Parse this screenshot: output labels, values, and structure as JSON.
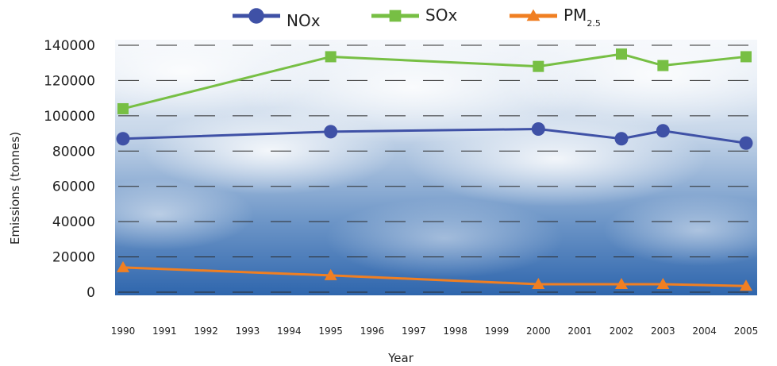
{
  "chart_data": {
    "type": "line",
    "title": "",
    "xlabel": "Year",
    "ylabel": "Emissions (tonnes)",
    "x": [
      "1990",
      "1991",
      "1992",
      "1993",
      "1994",
      "1995",
      "1996",
      "1997",
      "1998",
      "1999",
      "2000",
      "2001",
      "2002",
      "2003",
      "2004",
      "2005"
    ],
    "ylim": [
      0,
      140000
    ],
    "yticks": [
      "0",
      "20000",
      "40000",
      "60000",
      "80000",
      "100000",
      "120000",
      "140000"
    ],
    "grid": "dashed horizontal",
    "legend_position": "top",
    "background": "sky with clouds",
    "series": [
      {
        "name": "NOx",
        "color": "#3f51a6",
        "marker": "circle",
        "points": [
          {
            "x": "1990",
            "y": 87000
          },
          {
            "x": "1995",
            "y": 91000
          },
          {
            "x": "2000",
            "y": 92500
          },
          {
            "x": "2002",
            "y": 87000
          },
          {
            "x": "2003",
            "y": 91500
          },
          {
            "x": "2005",
            "y": 84500
          }
        ]
      },
      {
        "name": "SOx",
        "color": "#77bf44",
        "marker": "square",
        "points": [
          {
            "x": "1990",
            "y": 104000
          },
          {
            "x": "1995",
            "y": 133500
          },
          {
            "x": "2000",
            "y": 128000
          },
          {
            "x": "2002",
            "y": 135000
          },
          {
            "x": "2003",
            "y": 128500
          },
          {
            "x": "2005",
            "y": 133500
          }
        ]
      },
      {
        "name": "PM",
        "name_subscript": "2.5",
        "color": "#f07f22",
        "marker": "triangle",
        "points": [
          {
            "x": "1990",
            "y": 14000
          },
          {
            "x": "1995",
            "y": 9500
          },
          {
            "x": "2000",
            "y": 4500
          },
          {
            "x": "2002",
            "y": 4500
          },
          {
            "x": "2003",
            "y": 4500
          },
          {
            "x": "2005",
            "y": 3500
          }
        ]
      }
    ]
  }
}
